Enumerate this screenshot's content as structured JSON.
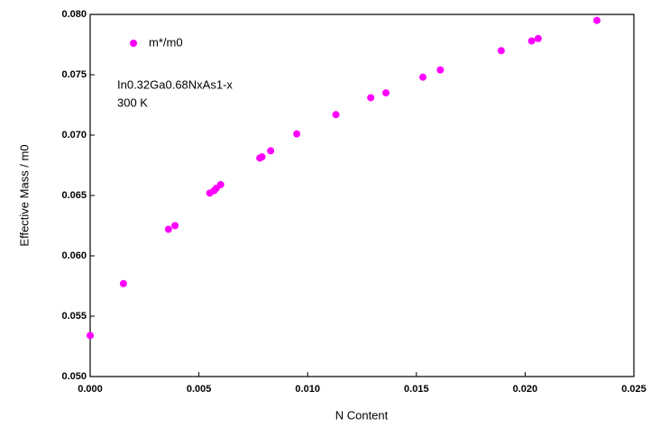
{
  "chart_data": {
    "type": "scatter",
    "x_label": "N Content",
    "y_label": "Effective Mass / m0",
    "annotations": [
      "In0.32Ga0.68NxAs1-x",
      "300 K"
    ],
    "series": [
      {
        "name": "m*/m0",
        "color": "#ff00ff",
        "x": [
          0,
          0.00153,
          0.0036,
          0.0039,
          0.0055,
          0.0057,
          0.0058,
          0.006,
          0.0078,
          0.0079,
          0.0083,
          0.0095,
          0.0113,
          0.0129,
          0.0136,
          0.0153,
          0.0161,
          0.0189,
          0.0203,
          0.0206,
          0.0233
        ],
        "values": [
          0.0534,
          0.0577,
          0.0622,
          0.0625,
          0.0652,
          0.0654,
          0.0656,
          0.0659,
          0.0681,
          0.0682,
          0.0687,
          0.0701,
          0.0717,
          0.0731,
          0.0735,
          0.0748,
          0.0754,
          0.077,
          0.0778,
          0.078,
          0.0795
        ]
      }
    ],
    "xlim": [
      0,
      0.025
    ],
    "ylim": [
      0.05,
      0.08
    ],
    "xticks": [
      {
        "value": 0,
        "label": "0.000"
      },
      {
        "value": 0.005,
        "label": "0.005"
      },
      {
        "value": 0.01,
        "label": "0.010"
      },
      {
        "value": 0.015,
        "label": "0.015"
      },
      {
        "value": 0.02,
        "label": "0.020"
      },
      {
        "value": 0.025,
        "label": "0.025"
      }
    ],
    "yticks": [
      {
        "value": 0.05,
        "label": "0.050"
      },
      {
        "value": 0.055,
        "label": "0.055"
      },
      {
        "value": 0.06,
        "label": "0.060"
      },
      {
        "value": 0.065,
        "label": "0.065"
      },
      {
        "value": 0.07,
        "label": "0.070"
      },
      {
        "value": 0.075,
        "label": "0.075"
      },
      {
        "value": 0.08,
        "label": "0.080"
      }
    ],
    "grid": false,
    "legend": "top-left"
  }
}
